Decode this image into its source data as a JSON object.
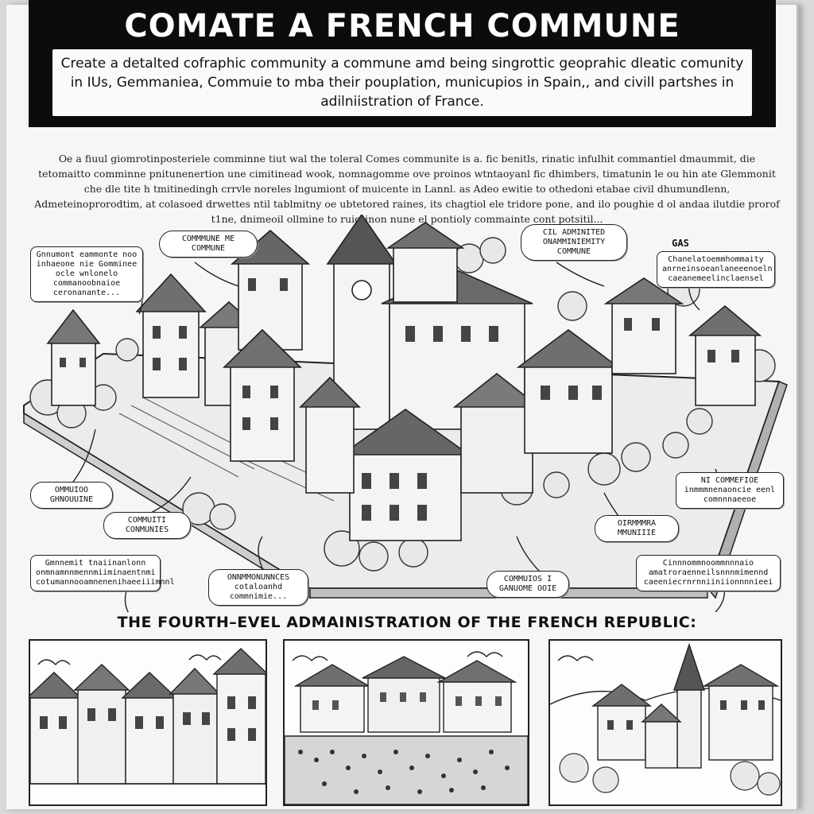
{
  "banner": {
    "title": "COMATE A FRENCH COMMUNE",
    "subtitle": "Create a detalted cofraphic community  a commune amd being singrottic geoprahic dleatic comunity in IUs, Gemmaniea, Commuie to mba their pouplation,  municupios in Spain,, and civill partshes in adilniistration of France."
  },
  "intro": {
    "text": "Oe a fiuul giomrotinposteriele comminne tiut wal the toleral Comes communite is a. fic benitls, rinatic infulhit commantiel dmaummit, die tetomaitto comminne pnitunenertion une cimitinead wook, nomnagomme ove proinos wtntaoyanl fic dhimbers, timatunin le ou hin ate Glemmonit che dle tite h tmitinedingh crrvle noreles lngumiont of muicente in Lannl. as Adeo ewitie to othedoni etabae civil dhumundlenn, Admeteinoprorodtim, at colasoed drwettes ntil tablmitny oe ubtetored raines, its chagtiol ele tridore pone, and ilo poughie d ol andaa  ilutdie prorof t1ne, dnimeoil ollmine to ruigtinon nune el pontioly commainte cont potsitil..."
  },
  "callouts": {
    "c1": "Gnnumont eammonte noo inhaeone nie Gomminee ocle wnlonelo commanoobnaioe ceronanante...",
    "c2": "COMMMUNE ME COMMUNE",
    "c3": "CIL ADMINITED ONAMMINIEMITY COMMUNE",
    "c4": "GAS",
    "c5": "Chanelatoemmhommaity anrneinsoeanlaneeenoeln caeanemeelinclaensel",
    "c6": "OMMUIOO GHNOUUINE",
    "c7": "COMMUITI CONMUNIES",
    "c8": "ONNMMONUNNCES cotaloanhd commnimie...",
    "c9": "COMMUIOS I GANUOME OOIE",
    "c10": "OIRMMMRA MMUNIIIE",
    "c11": "NI COMMEFIOE inmmmnenaoncie eenl comnnnaeeoe",
    "c12": "Gmnnemit tnaiinanlonn onmnamnnmennmiiminaentnmi cotumannooamnenenihaeeiiimnnl",
    "c13": "Cinnnommnoommnnnaio amatroraenneilsnnnmimennd caeeniecrnrnniiniionnnnieei"
  },
  "section_heading": "THE FOURTH–EVEL ADMAINISTRATION  OF THE FRENCH REPUBLIC:",
  "colors": {
    "ink": "#111111",
    "paper": "#f6f6f6",
    "banner": "#0c0c0c",
    "flag": "#cc2222"
  }
}
